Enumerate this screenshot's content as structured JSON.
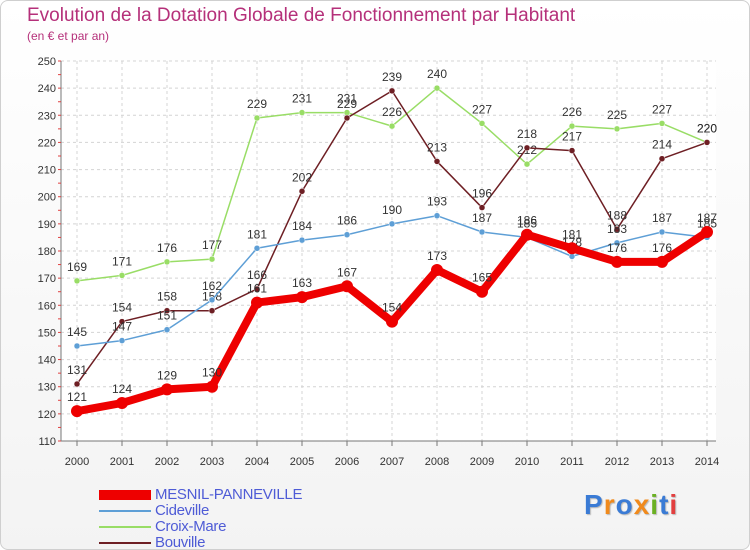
{
  "title": "Evolution de la Dotation Globale de Fonctionnement par Habitant",
  "subtitle": "(en € et par an)",
  "logo": {
    "text": "Proxiti",
    "colors": [
      "#3a7bd5",
      "#f08a1c",
      "#3a7bd5",
      "#f08a1c",
      "#6ab023",
      "#3a7bd5",
      "#e23f3f"
    ]
  },
  "chart_data": {
    "type": "line",
    "title": "Evolution de la Dotation Globale de Fonctionnement par Habitant",
    "subtitle": "(en € et par an)",
    "xlabel": "",
    "ylabel": "",
    "ylim": [
      110,
      250
    ],
    "yticks": [
      110,
      120,
      130,
      140,
      150,
      160,
      170,
      180,
      190,
      200,
      210,
      220,
      230,
      240,
      250
    ],
    "categories": [
      "2000",
      "2001",
      "2002",
      "2003",
      "2004",
      "2005",
      "2006",
      "2007",
      "2008",
      "2009",
      "2010",
      "2011",
      "2012",
      "2013",
      "2014"
    ],
    "legend_position": "bottom-left",
    "series": [
      {
        "name": "Croix-Mare",
        "color": "#99dd66",
        "values": [
          169,
          171,
          176,
          177,
          229,
          231,
          231,
          226,
          240,
          227,
          212,
          226,
          225,
          227,
          220
        ]
      },
      {
        "name": "Bouville",
        "color": "#6e1f24",
        "values": [
          131,
          154,
          158,
          158,
          166,
          202,
          229,
          239,
          213,
          196,
          218,
          217,
          188,
          214,
          220
        ]
      },
      {
        "name": "Cideville",
        "color": "#5e9fd6",
        "values": [
          145,
          147,
          151,
          162,
          181,
          184,
          186,
          190,
          193,
          187,
          185,
          178,
          183,
          187,
          185
        ]
      },
      {
        "name": "MESNIL-PANNEVILLE",
        "color": "#ee0000",
        "values": [
          121,
          124,
          129,
          130,
          161,
          163,
          167,
          154,
          173,
          165,
          186,
          181,
          176,
          176,
          187
        ]
      }
    ],
    "legend": [
      "MESNIL-PANNEVILLE",
      "Cideville",
      "Croix-Mare",
      "Bouville"
    ]
  }
}
